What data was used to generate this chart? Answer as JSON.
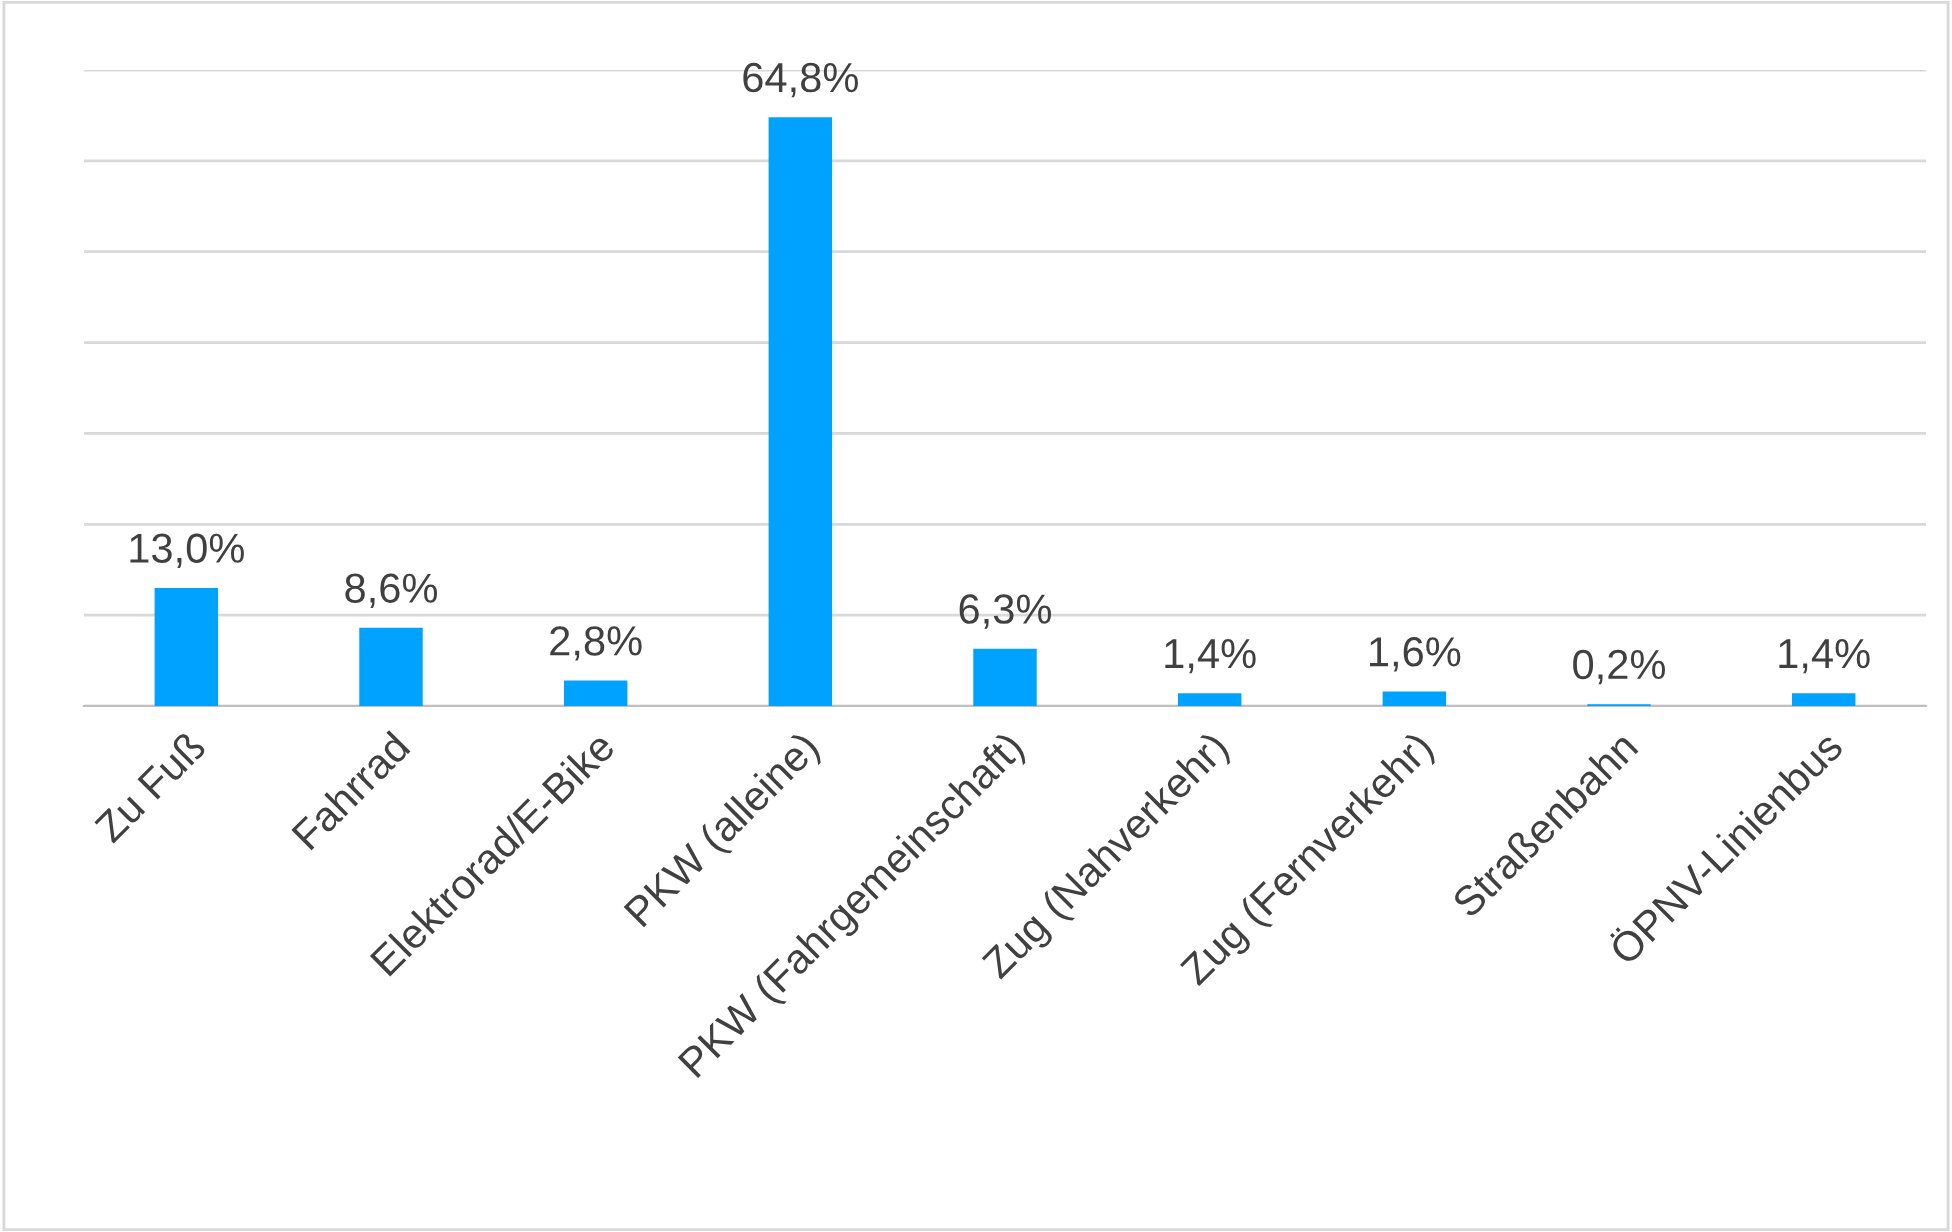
{
  "chart_data": {
    "type": "bar",
    "categories": [
      "Zu Fuß",
      "Fahrrad",
      "Elektrorad/E-Bike",
      "PKW (alleine)",
      "PKW (Fahrgemeinschaft)",
      "Zug (Nahverkehr)",
      "Zug (Fernverkehr)",
      "Straßenbahn",
      "ÖPNV-Linienbus"
    ],
    "values": [
      13.0,
      8.6,
      2.8,
      64.8,
      6.3,
      1.4,
      1.6,
      0.2,
      1.4
    ],
    "value_labels": [
      "13,0%",
      "8,6%",
      "2,8%",
      "64,8%",
      "6,3%",
      "1,4%",
      "1,6%",
      "0,2%",
      "1,4%"
    ],
    "color": "#00a2ff",
    "ylim": [
      0,
      70
    ],
    "yticks": [
      {
        "value": 0,
        "label": null
      },
      {
        "value": 10,
        "label": null
      },
      {
        "value": 20,
        "label": null
      },
      {
        "value": 30,
        "label": null
      },
      {
        "value": 40,
        "label": null
      },
      {
        "value": 50,
        "label": null
      },
      {
        "value": 60,
        "label": null
      },
      {
        "value": 70,
        "label": null
      }
    ],
    "grid": "y",
    "tick_labels": "x"
  }
}
